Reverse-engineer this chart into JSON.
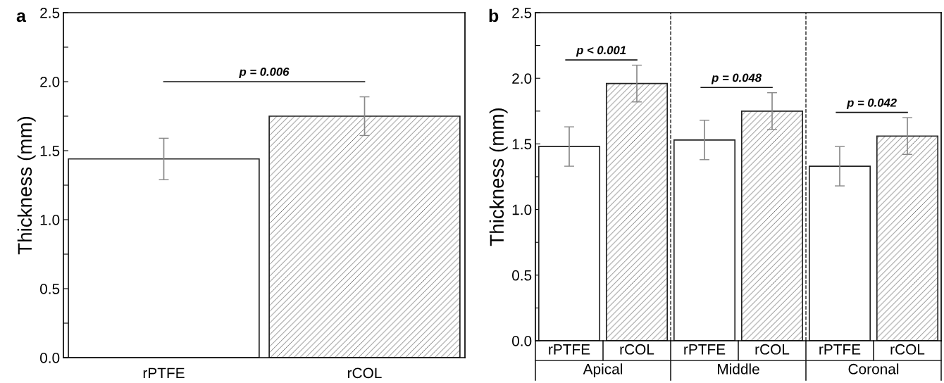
{
  "chart_data": [
    {
      "type": "bar",
      "title": "a",
      "ylabel": "Thickness (mm)",
      "categories": [
        "rPTFE",
        "rCOL"
      ],
      "values": [
        1.44,
        1.75
      ],
      "errors": [
        0.15,
        0.14
      ],
      "colors": [
        "#ffffff",
        "#222222"
      ],
      "ylim": [
        0,
        2.5
      ],
      "yticks": [
        {
          "value": 0,
          "label": "0.0"
        },
        {
          "value": 0.25,
          "label": null
        },
        0.5,
        {
          "value": 0.75,
          "label": null
        },
        {
          "value": 1,
          "label": "1.0"
        },
        {
          "value": 1.25,
          "label": null
        },
        1.5,
        {
          "value": 1.75,
          "label": null
        },
        {
          "value": 2,
          "label": "2.0"
        },
        {
          "value": 2.25,
          "label": null
        },
        2.5
      ],
      "annotations": [
        "p = 0.006"
      ],
      "grid": false,
      "legend": false
    },
    {
      "type": "bar",
      "title": "b",
      "ylabel": "Thickness (mm)",
      "categories": [
        "rPTFE",
        "rCOL",
        "rPTFE",
        "rCOL",
        "rPTFE",
        "rCOL"
      ],
      "values": [
        1.48,
        1.96,
        1.53,
        1.75,
        1.33,
        1.56
      ],
      "errors": [
        0.15,
        0.14,
        0.15,
        0.14,
        0.15,
        0.14
      ],
      "colors": [
        "#ffffff",
        "#222222",
        "#ffffff",
        "#222222",
        "#ffffff",
        "#222222"
      ],
      "ylim": [
        0,
        2.5
      ],
      "yticks": [
        {
          "value": 0,
          "label": "0.0"
        },
        {
          "value": 0.25,
          "label": null
        },
        0.5,
        {
          "value": 0.75,
          "label": null
        },
        {
          "value": 1,
          "label": "1.0"
        },
        {
          "value": 1.25,
          "label": null
        },
        1.5,
        {
          "value": 1.75,
          "label": null
        },
        {
          "value": 2,
          "label": "2.0"
        },
        {
          "value": 2.25,
          "label": null
        },
        2.5
      ],
      "annotations": [
        "p < 0.001",
        "p = 0.048",
        "p = 0.042",
        "Apical",
        "Middle",
        "Coronal"
      ],
      "grid": false,
      "legend": false
    }
  ]
}
